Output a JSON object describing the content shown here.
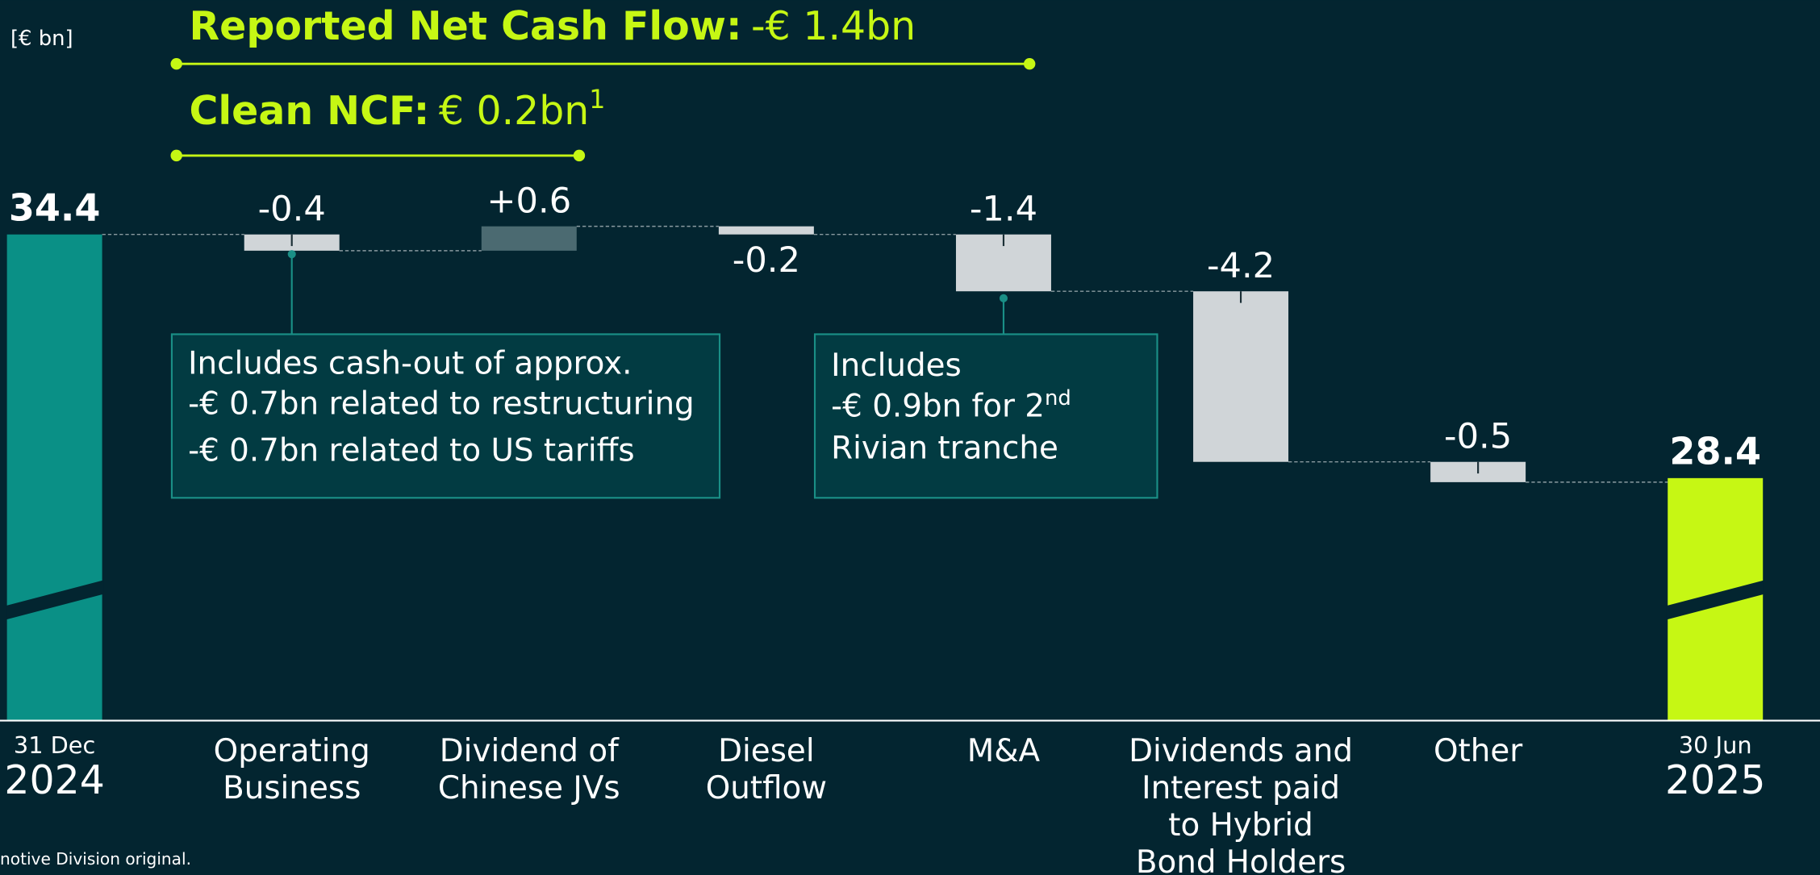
{
  "unit": "[€ bn]",
  "headline": {
    "reported": {
      "label": "Reported Net Cash Flow:",
      "value": "-€ 1.4bn"
    },
    "clean": {
      "label": "Clean NCF:",
      "value": "€ 0.2bn",
      "footnote": "1"
    }
  },
  "chart_data": {
    "type": "waterfall",
    "categories": [
      [
        "31 Dec",
        "2024"
      ],
      [
        "Operating",
        "Business"
      ],
      [
        "Dividend of",
        "Chinese JVs"
      ],
      [
        "Diesel",
        "Outflow"
      ],
      [
        "M&A"
      ],
      [
        "Dividends and",
        "Interest paid",
        "to Hybrid",
        "Bond Holders"
      ],
      [
        "Other"
      ],
      [
        "30 Jun",
        "2025"
      ]
    ],
    "values": [
      34.4,
      -0.4,
      0.6,
      -0.2,
      -1.4,
      -4.2,
      -0.5,
      28.4
    ],
    "value_labels": [
      "34.4",
      "-0.4",
      "+0.6",
      "-0.2",
      "-1.4",
      "-4.2",
      "-0.5",
      "28.4"
    ],
    "colors": {
      "start": "#0a9086",
      "end": "#c6f714",
      "increase": "#4b6a71",
      "decrease": "#d0d5d8"
    }
  },
  "annotations": [
    {
      "lines": [
        {
          "text": "Includes cash-out of approx."
        },
        {
          "text": "-€ 0.7bn related to restructuring"
        },
        {
          "text": "-€ 0.7bn related to US tariffs"
        }
      ]
    },
    {
      "lines": [
        {
          "text": "Includes"
        },
        {
          "text": "-€ 0.9bn for 2",
          "sup": "nd"
        },
        {
          "text": "Rivian tranche"
        }
      ]
    }
  ],
  "footer": "notive Division original."
}
